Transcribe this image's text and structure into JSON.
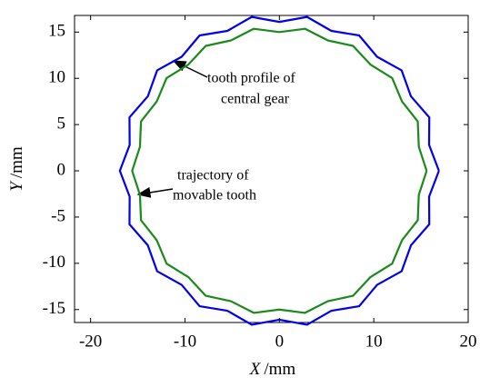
{
  "chart_data": {
    "type": "line",
    "x_label": {
      "symbol": "X",
      "unit": "/mm"
    },
    "y_label": {
      "symbol": "Y",
      "unit": "/mm"
    },
    "xlim": [
      -21.7,
      20
    ],
    "ylim": [
      -16.4,
      16.8
    ],
    "xticks": [
      -20,
      -10,
      0,
      10,
      20
    ],
    "yticks": [
      -15,
      -10,
      -5,
      0,
      5,
      10,
      15
    ],
    "annotations": [
      {
        "lines": [
          "tooth profile of",
          "central gear"
        ]
      },
      {
        "lines": [
          "trajectory of",
          "movable tooth"
        ]
      }
    ],
    "series": [
      {
        "color": "#0000ee",
        "x": [
          16.9,
          15.86,
          15.88,
          13.94,
          12.95,
          10.35,
          8.45,
          5.51,
          2.93,
          0,
          -2.93,
          -5.51,
          -8.45,
          -10.35,
          -12.95,
          -13.94,
          -15.88,
          -15.86,
          -16.9,
          -15.86,
          -15.88,
          -13.94,
          -12.95,
          -10.35,
          -8.45,
          -5.51,
          -2.93,
          0,
          2.93,
          5.51,
          8.45,
          10.35,
          12.95,
          13.94,
          15.88,
          15.86,
          16.9
        ],
        "y": [
          0,
          2.8,
          5.78,
          8.05,
          10.86,
          12.33,
          14.64,
          15.13,
          16.64,
          16.1,
          16.64,
          15.13,
          14.64,
          12.33,
          10.86,
          8.05,
          5.78,
          2.8,
          0,
          -2.8,
          -5.78,
          -8.05,
          -10.86,
          -12.33,
          -14.64,
          -15.13,
          -16.64,
          -16.1,
          -16.64,
          -15.13,
          -14.64,
          -12.33,
          -10.86,
          -8.05,
          -5.78,
          -2.8,
          0
        ]
      },
      {
        "color": "#1a8a1a",
        "x": [
          15.6,
          14.77,
          14.66,
          12.99,
          11.95,
          9.64,
          7.8,
          5.13,
          2.71,
          0,
          -2.71,
          -5.13,
          -7.8,
          -9.64,
          -11.95,
          -12.99,
          -14.66,
          -14.77,
          -15.6,
          -14.77,
          -14.66,
          -12.99,
          -11.95,
          -9.64,
          -7.8,
          -5.13,
          -2.71,
          0,
          2.71,
          5.13,
          7.8,
          9.64,
          11.95,
          12.99,
          14.66,
          14.77,
          15.6
        ],
        "y": [
          0,
          2.6,
          5.34,
          7.5,
          10.03,
          11.49,
          13.51,
          14.1,
          15.36,
          15.0,
          15.36,
          14.1,
          13.51,
          11.49,
          10.03,
          7.5,
          5.34,
          2.6,
          0,
          -2.6,
          -5.34,
          -7.5,
          -10.03,
          -11.49,
          -13.51,
          -14.1,
          -15.36,
          -15.0,
          -15.36,
          -14.1,
          -13.51,
          -11.49,
          -10.03,
          -7.5,
          -5.34,
          -2.6,
          0
        ]
      }
    ]
  }
}
